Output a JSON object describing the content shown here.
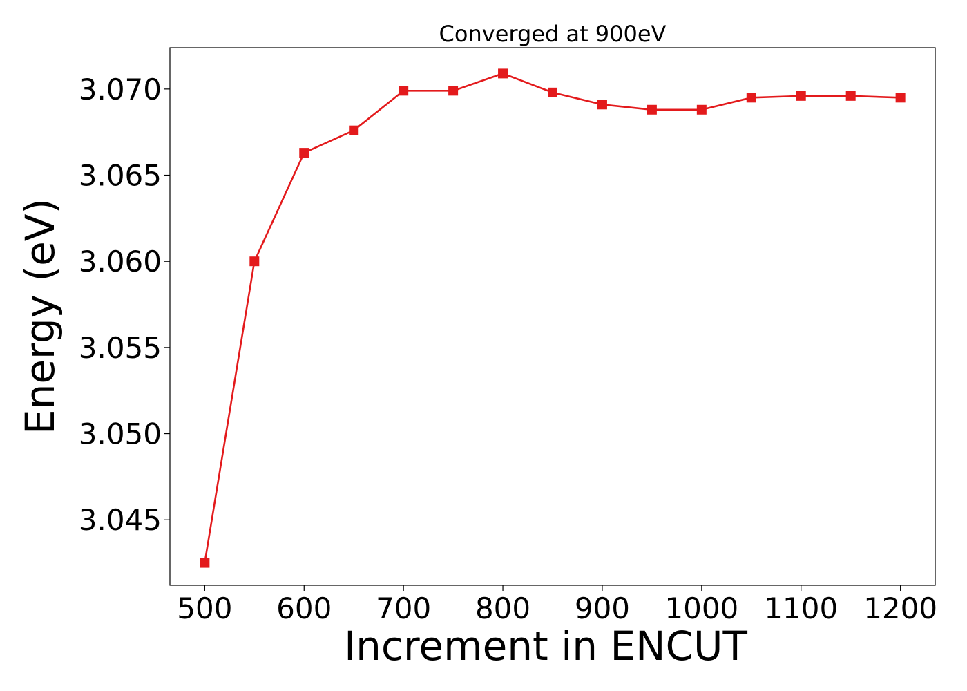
{
  "chart_data": {
    "type": "line",
    "title": "Converged at 900eV",
    "xlabel": "Increment in ENCUT",
    "ylabel": "Energy (eV)",
    "xlim": [
      465,
      1235
    ],
    "ylim": [
      3.0412,
      3.0724
    ],
    "x_ticks": [
      500,
      600,
      700,
      800,
      900,
      1000,
      1100,
      1200
    ],
    "y_ticks": [
      3.045,
      3.05,
      3.055,
      3.06,
      3.065,
      3.07
    ],
    "y_tick_labels": [
      "3.045",
      "3.050",
      "3.055",
      "3.060",
      "3.065",
      "3.070"
    ],
    "grid": false,
    "legend": "none",
    "series": [
      {
        "color": "#e31a1c",
        "marker": "square",
        "x": [
          500,
          550,
          600,
          650,
          700,
          750,
          800,
          850,
          900,
          950,
          1000,
          1050,
          1100,
          1150,
          1200
        ],
        "y": [
          3.0425,
          3.06,
          3.0663,
          3.0676,
          3.0699,
          3.0699,
          3.0709,
          3.0698,
          3.0691,
          3.0688,
          3.0688,
          3.0695,
          3.0696,
          3.0696,
          3.0695
        ]
      }
    ]
  }
}
